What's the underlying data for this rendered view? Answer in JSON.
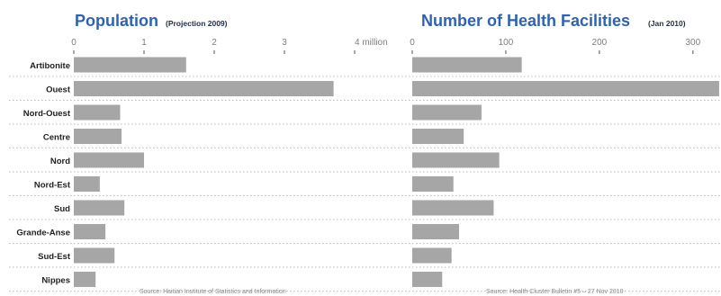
{
  "charts": {
    "population": {
      "title_main": "Population",
      "title_sub": "(Projection 2009)",
      "source": "Source: Haitian Institute of Statistics and Information"
    },
    "facilities": {
      "title_main": "Number of Health Facilities",
      "title_sub": "(Jan 2010)",
      "source": "Source: Health Cluster Bulletin #5 – 27 Nov 2010"
    }
  },
  "chart_data": [
    {
      "type": "bar",
      "orientation": "horizontal",
      "title": "Population (Projection 2009)",
      "source": "Source: Haitian Institute of Statistics and Information",
      "categories": [
        "Artibonite",
        "Ouest",
        "Nord-Ouest",
        "Centre",
        "Nord",
        "Nord-Est",
        "Sud",
        "Grande-Anse",
        "Sud-Est",
        "Nippes"
      ],
      "values": [
        1.6,
        3.7,
        0.66,
        0.68,
        1.0,
        0.37,
        0.72,
        0.45,
        0.58,
        0.31
      ],
      "xlim": [
        0,
        4.5
      ],
      "xticks": [
        0,
        1,
        2,
        3,
        4
      ],
      "xtick_labels": [
        "0",
        "1",
        "2",
        "3",
        "4 million"
      ],
      "bar_color": "#a6a6a6",
      "grid": "dotted horizontal separators"
    },
    {
      "type": "bar",
      "orientation": "horizontal",
      "title": "Number of Health Facilities (Jan 2010)",
      "source": "Source: Health Cluster Bulletin #5 – 27 Nov 2010",
      "categories": [
        "Artibonite",
        "Ouest",
        "Nord-Ouest",
        "Centre",
        "Nord",
        "Nord-Est",
        "Sud",
        "Grande-Anse",
        "Sud-Est",
        "Nippes"
      ],
      "values": [
        117,
        328,
        74,
        55,
        93,
        44,
        87,
        50,
        42,
        32
      ],
      "xlim": [
        0,
        330
      ],
      "xticks": [
        0,
        100,
        200,
        300
      ],
      "xtick_labels": [
        "0",
        "100",
        "200",
        "300"
      ],
      "bar_color": "#a6a6a6",
      "grid": "dotted horizontal separators"
    }
  ]
}
